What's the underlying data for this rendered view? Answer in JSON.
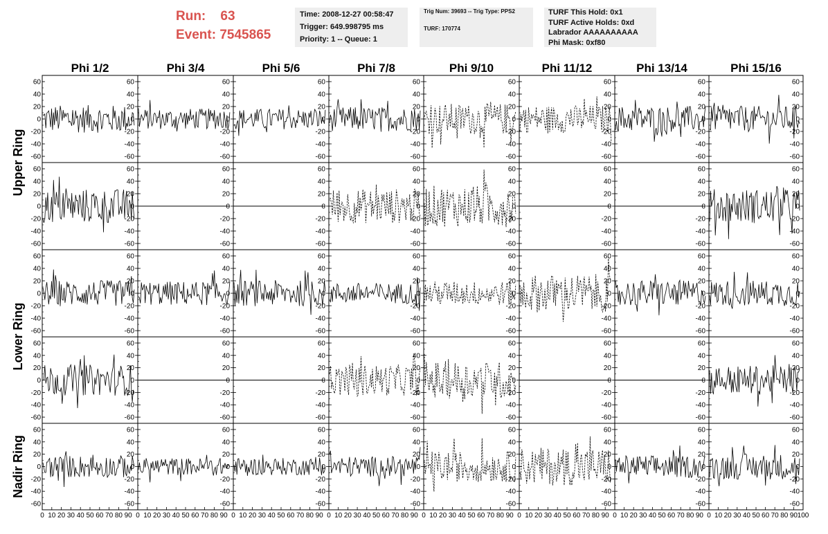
{
  "header": {
    "run_label": "Run:",
    "run_value": "63",
    "event_label": "Event:",
    "event_value": "7545865",
    "colors": {
      "run_text": "#d9534f",
      "box_bg": "#eeeeee"
    }
  },
  "info_box_1": {
    "time": "Time: 2008-12-27 00:58:47",
    "trigger": "Trigger: 649.998795 ms",
    "priority": "Priority: 1 -- Queue: 1"
  },
  "info_box_2": {
    "trig": "Trig Num: 39693 -- Trig Type: PPS2",
    "turf": "TURF: 170774"
  },
  "info_box_3": {
    "this_hold": "TURF This Hold: 0x1",
    "active_holds": "TURF Active Holds: 0xd",
    "labrador": "Labrador AAAAAAAAAA",
    "phi_mask": "Phi Mask: 0xf80"
  },
  "chart_data": {
    "type": "line",
    "columns": [
      "Phi 1/2",
      "Phi 3/4",
      "Phi 5/6",
      "Phi 7/8",
      "Phi 9/10",
      "Phi 11/12",
      "Phi 13/14",
      "Phi 15/16"
    ],
    "row_labels": [
      {
        "text": "Upper Ring",
        "spans_rows": [
          0,
          1
        ]
      },
      {
        "text": "Lower Ring",
        "spans_rows": [
          2,
          3
        ]
      },
      {
        "text": "Nadir Ring",
        "spans_rows": [
          4,
          4
        ]
      }
    ],
    "xlim": [
      0,
      100
    ],
    "ylim": [
      -70,
      70
    ],
    "y_ticks": [
      60,
      40,
      20,
      0,
      -20,
      -40,
      -60
    ],
    "x_ticks": [
      0,
      10,
      20,
      30,
      40,
      50,
      60,
      70,
      80,
      90,
      100
    ],
    "grid": false,
    "n_samples": 96,
    "line_color": "#000000",
    "panels": [
      [
        {
          "style": "solid",
          "amp": 16
        },
        {
          "style": "solid",
          "amp": 12
        },
        {
          "style": "solid",
          "amp": 12
        },
        {
          "style": "solid",
          "amp": 14
        },
        {
          "style": "dashed",
          "amp": 18
        },
        {
          "style": "dashed",
          "amp": 16
        },
        {
          "style": "solid",
          "amp": 15
        },
        {
          "style": "solid",
          "amp": 15
        }
      ],
      [
        {
          "style": "solid",
          "amp": 20
        },
        {
          "style": "flat",
          "amp": 0
        },
        {
          "style": "flat",
          "amp": 0
        },
        {
          "style": "dashed",
          "amp": 20
        },
        {
          "style": "dashed",
          "amp": 24
        },
        {
          "style": "flat",
          "amp": 0
        },
        {
          "style": "flat",
          "amp": 0
        },
        {
          "style": "solid",
          "amp": 20
        }
      ],
      [
        {
          "style": "solid",
          "amp": 15
        },
        {
          "style": "solid",
          "amp": 14
        },
        {
          "style": "solid",
          "amp": 15
        },
        {
          "style": "solid",
          "amp": 12
        },
        {
          "style": "dashed",
          "amp": 14
        },
        {
          "style": "dashed",
          "amp": 22
        },
        {
          "style": "solid",
          "amp": 15
        },
        {
          "style": "solid",
          "amp": 15
        }
      ],
      [
        {
          "style": "solid",
          "amp": 18
        },
        {
          "style": "flat",
          "amp": 0
        },
        {
          "style": "flat",
          "amp": 0
        },
        {
          "style": "dashed",
          "amp": 18
        },
        {
          "style": "dashed",
          "amp": 22
        },
        {
          "style": "flat",
          "amp": 0
        },
        {
          "style": "flat",
          "amp": 0
        },
        {
          "style": "solid",
          "amp": 17
        }
      ],
      [
        {
          "style": "solid",
          "amp": 13
        },
        {
          "style": "solid",
          "amp": 10
        },
        {
          "style": "solid",
          "amp": 10
        },
        {
          "style": "solid",
          "amp": 12
        },
        {
          "style": "dashed",
          "amp": 18
        },
        {
          "style": "dashed",
          "amp": 22
        },
        {
          "style": "solid",
          "amp": 13
        },
        {
          "style": "solid",
          "amp": 15
        }
      ]
    ]
  }
}
